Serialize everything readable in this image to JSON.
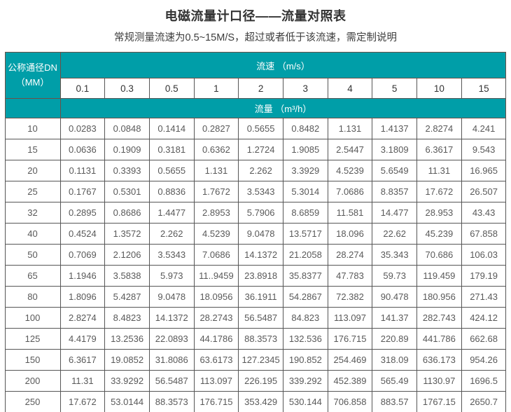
{
  "page": {
    "title": "电磁流量计口径——流量对照表",
    "subtitle": "常规测量流速为0.5~15M/S，超过或者低于该流速，需定制说明"
  },
  "colors": {
    "header_teal": "#009ea8",
    "header_text": "#ffffff",
    "grid_border": "#565656",
    "data_text": "#595959",
    "title_text": "#333333"
  },
  "table": {
    "corner_header": "公称通径DN\n（MM）",
    "velocity_header": "流速 （m/s）",
    "flow_header": "流量 （m³/h）",
    "velocities": [
      "0.1",
      "0.3",
      "0.5",
      "1",
      "2",
      "3",
      "4",
      "5",
      "10",
      "15"
    ],
    "rows": [
      {
        "dn": "10",
        "values": [
          "0.0283",
          "0.0848",
          "0.1414",
          "0.2827",
          "0.5655",
          "0.8482",
          "1.131",
          "1.4137",
          "2.8274",
          "4.241"
        ]
      },
      {
        "dn": "15",
        "values": [
          "0.0636",
          "0.1909",
          "0.3181",
          "0.6362",
          "1.2724",
          "1.9085",
          "2.5447",
          "3.1809",
          "6.3617",
          "9.543"
        ]
      },
      {
        "dn": "20",
        "values": [
          "0.1131",
          "0.3393",
          "0.5655",
          "1.131",
          "2.262",
          "3.3929",
          "4.5239",
          "5.6549",
          "11.31",
          "16.965"
        ]
      },
      {
        "dn": "25",
        "values": [
          "0.1767",
          "0.5301",
          "0.8836",
          "1.7672",
          "3.5343",
          "5.3014",
          "7.0686",
          "8.8357",
          "17.672",
          "26.507"
        ]
      },
      {
        "dn": "32",
        "values": [
          "0.2895",
          "0.8686",
          "1.4477",
          "2.8953",
          "5.7906",
          "8.6859",
          "11.581",
          "14.477",
          "28.953",
          "43.43"
        ]
      },
      {
        "dn": "40",
        "values": [
          "0.4524",
          "1.3572",
          "2.262",
          "4.5239",
          "9.0478",
          "13.5717",
          "18.096",
          "22.62",
          "45.239",
          "67.858"
        ]
      },
      {
        "dn": "50",
        "values": [
          "0.7069",
          "2.1206",
          "3.5343",
          "7.0686",
          "14.1372",
          "21.2058",
          "28.274",
          "35.343",
          "70.686",
          "106.03"
        ]
      },
      {
        "dn": "65",
        "values": [
          "1.1946",
          "3.5838",
          "5.973",
          "11..9459",
          "23.8918",
          "35.8377",
          "47.783",
          "59.73",
          "119.459",
          "179.19"
        ]
      },
      {
        "dn": "80",
        "values": [
          "1.8096",
          "5.4287",
          "9.0478",
          "18.0956",
          "36.1911",
          "54.2867",
          "72.382",
          "90.478",
          "180.956",
          "271.43"
        ]
      },
      {
        "dn": "100",
        "values": [
          "2.8274",
          "8.4823",
          "14.1372",
          "28.2743",
          "56.5487",
          "84.823",
          "113.097",
          "141.37",
          "282.743",
          "424.12"
        ]
      },
      {
        "dn": "125",
        "values": [
          "4.4179",
          "13.2536",
          "22.0893",
          "44.1786",
          "88.3573",
          "132.536",
          "176.715",
          "220.89",
          "441.786",
          "662.68"
        ]
      },
      {
        "dn": "150",
        "values": [
          "6.3617",
          "19.0852",
          "31.8086",
          "63.6173",
          "127.2345",
          "190.852",
          "254.469",
          "318.09",
          "636.173",
          "954.26"
        ]
      },
      {
        "dn": "200",
        "values": [
          "11.31",
          "33.9292",
          "56.5487",
          "113.097",
          "226.195",
          "339.292",
          "452.389",
          "565.49",
          "1130.97",
          "1696.5"
        ]
      },
      {
        "dn": "250",
        "values": [
          "17.672",
          "53.0144",
          "88.3573",
          "176.715",
          "353.429",
          "530.144",
          "706.858",
          "883.57",
          "1767.15",
          "2650.7"
        ]
      }
    ]
  }
}
